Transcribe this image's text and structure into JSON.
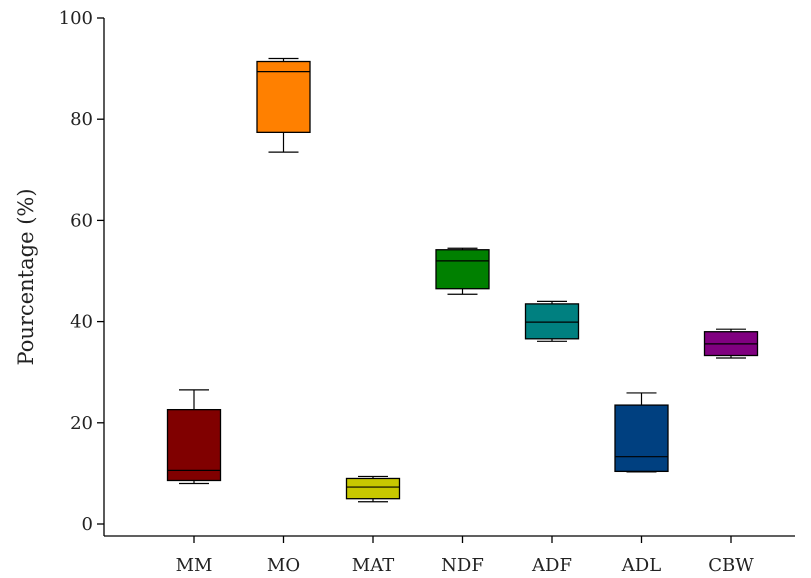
{
  "chart_data": {
    "type": "box",
    "title": "",
    "xlabel": "",
    "ylabel": "Pourcentage (%)",
    "ylim": [
      0,
      100
    ],
    "yticks": [
      0,
      20,
      40,
      60,
      80,
      100
    ],
    "grid": false,
    "categories": [
      "MM",
      "MO",
      "MAT",
      "NDF",
      "ADF",
      "ADL",
      "CBW"
    ],
    "boxes": [
      {
        "category": "MM",
        "whisker_low": 8.0,
        "q1": 8.6,
        "median": 10.6,
        "q3": 22.6,
        "whisker_high": 26.5,
        "color": "#800000"
      },
      {
        "category": "MO",
        "whisker_low": 73.5,
        "q1": 77.4,
        "median": 89.4,
        "q3": 91.4,
        "whisker_high": 92.0,
        "color": "#ff8000"
      },
      {
        "category": "MAT",
        "whisker_low": 4.4,
        "q1": 5.0,
        "median": 7.3,
        "q3": 9.0,
        "whisker_high": 9.4,
        "color": "#c8c800"
      },
      {
        "category": "NDF",
        "whisker_low": 45.4,
        "q1": 46.5,
        "median": 52.0,
        "q3": 54.2,
        "whisker_high": 54.5,
        "color": "#008000"
      },
      {
        "category": "ADF",
        "whisker_low": 36.1,
        "q1": 36.6,
        "median": 39.9,
        "q3": 43.5,
        "whisker_high": 44.0,
        "color": "#008080"
      },
      {
        "category": "ADL",
        "whisker_low": 10.3,
        "q1": 10.4,
        "median": 13.3,
        "q3": 23.5,
        "whisker_high": 25.9,
        "color": "#004080"
      },
      {
        "category": "CBW",
        "whisker_low": 32.8,
        "q1": 33.3,
        "median": 35.6,
        "q3": 38.0,
        "whisker_high": 38.5,
        "color": "#800080"
      }
    ]
  }
}
